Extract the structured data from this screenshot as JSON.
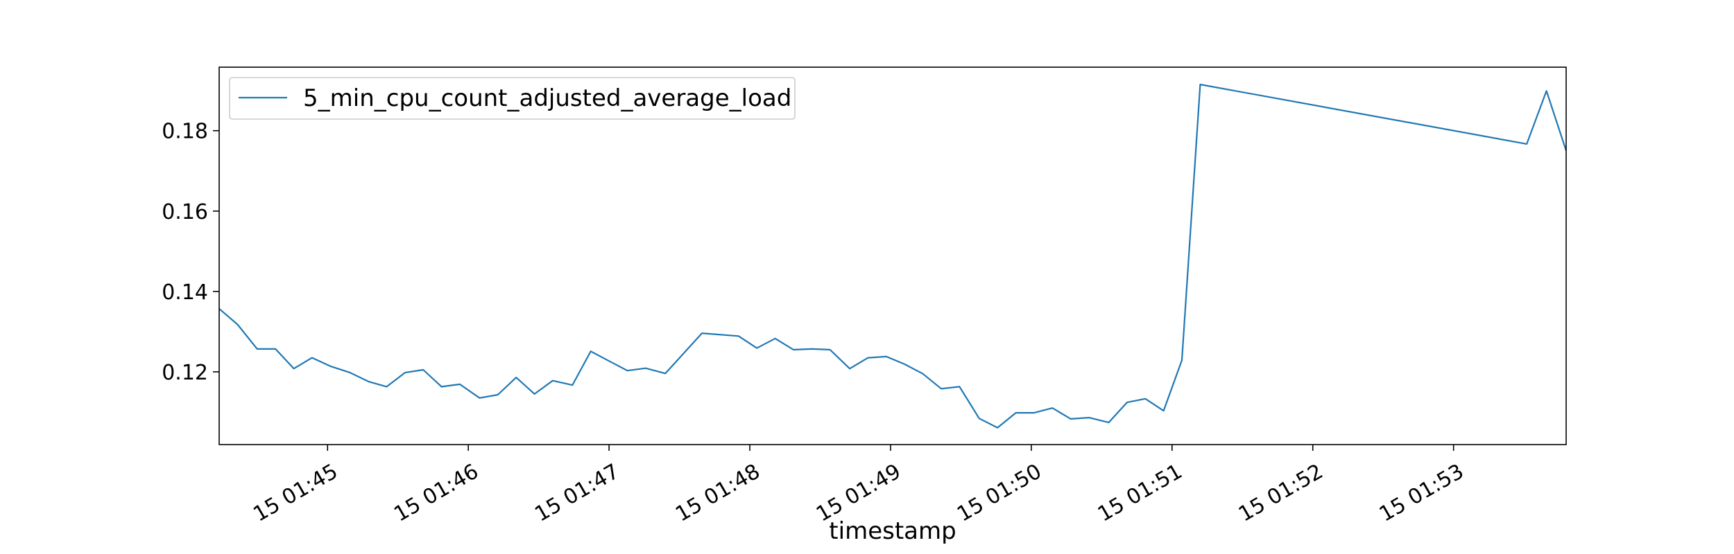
{
  "chart_data": {
    "type": "line",
    "title": "",
    "xlabel": "timestamp",
    "ylabel": "",
    "x_ticks": [
      {
        "label": "15 01:45",
        "minutes": 45
      },
      {
        "label": "15 01:46",
        "minutes": 46
      },
      {
        "label": "15 01:47",
        "minutes": 47
      },
      {
        "label": "15 01:48",
        "minutes": 48
      },
      {
        "label": "15 01:49",
        "minutes": 49
      },
      {
        "label": "15 01:50",
        "minutes": 50
      },
      {
        "label": "15 01:51",
        "minutes": 51
      },
      {
        "label": "15 01:52",
        "minutes": 52
      },
      {
        "label": "15 01:53",
        "minutes": 53
      }
    ],
    "y_ticks": [
      {
        "label": "0.12",
        "value": 0.12
      },
      {
        "label": "0.14",
        "value": 0.14
      },
      {
        "label": "0.16",
        "value": 0.16
      },
      {
        "label": "0.18",
        "value": 0.18
      }
    ],
    "xlim": [
      44.23,
      53.8
    ],
    "ylim": [
      0.1019,
      0.1958
    ],
    "grid": false,
    "legend": {
      "position": "top-left"
    },
    "series": [
      {
        "name": "5_min_cpu_count_adjusted_average_load",
        "color": "#1f77b4",
        "points": [
          [
            44.23,
            0.1357
          ],
          [
            44.36,
            0.1318
          ],
          [
            44.5,
            0.1257
          ],
          [
            44.63,
            0.1257
          ],
          [
            44.76,
            0.1208
          ],
          [
            44.89,
            0.1235
          ],
          [
            45.02,
            0.1214
          ],
          [
            45.16,
            0.1198
          ],
          [
            45.29,
            0.1176
          ],
          [
            45.42,
            0.1163
          ],
          [
            45.55,
            0.1198
          ],
          [
            45.68,
            0.1205
          ],
          [
            45.81,
            0.1163
          ],
          [
            45.94,
            0.1169
          ],
          [
            46.08,
            0.1135
          ],
          [
            46.21,
            0.1143
          ],
          [
            46.34,
            0.1186
          ],
          [
            46.47,
            0.1145
          ],
          [
            46.6,
            0.1178
          ],
          [
            46.74,
            0.1167
          ],
          [
            46.87,
            0.1251
          ],
          [
            47.0,
            0.1227
          ],
          [
            47.13,
            0.1203
          ],
          [
            47.26,
            0.1209
          ],
          [
            47.4,
            0.1196
          ],
          [
            47.66,
            0.1296
          ],
          [
            47.92,
            0.1289
          ],
          [
            48.05,
            0.1259
          ],
          [
            48.18,
            0.1283
          ],
          [
            48.31,
            0.1255
          ],
          [
            48.44,
            0.1257
          ],
          [
            48.57,
            0.1255
          ],
          [
            48.71,
            0.1208
          ],
          [
            48.84,
            0.1235
          ],
          [
            48.97,
            0.1238
          ],
          [
            49.1,
            0.1219
          ],
          [
            49.23,
            0.1195
          ],
          [
            49.36,
            0.1158
          ],
          [
            49.49,
            0.1163
          ],
          [
            49.63,
            0.1084
          ],
          [
            49.76,
            0.1061
          ],
          [
            49.89,
            0.1098
          ],
          [
            50.02,
            0.1098
          ],
          [
            50.15,
            0.111
          ],
          [
            50.28,
            0.1083
          ],
          [
            50.41,
            0.1086
          ],
          [
            50.55,
            0.1074
          ],
          [
            50.68,
            0.1124
          ],
          [
            50.81,
            0.1133
          ],
          [
            50.94,
            0.1103
          ],
          [
            51.07,
            0.1229
          ],
          [
            51.2,
            0.1915
          ],
          [
            53.52,
            0.1767
          ],
          [
            53.66,
            0.1899
          ],
          [
            53.8,
            0.175
          ]
        ]
      }
    ]
  }
}
